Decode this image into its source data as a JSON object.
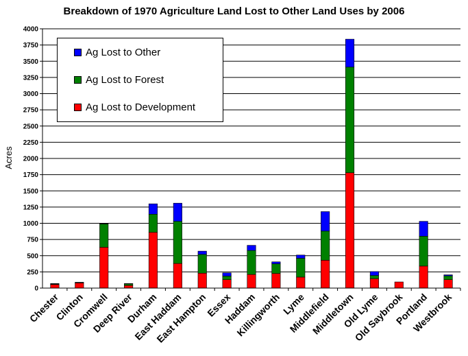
{
  "colors": {
    "Ag Lost to Development": "#ff0000",
    "Ag Lost to Forest": "#008000",
    "Ag Lost to Other": "#0000ff"
  },
  "chart_data": {
    "type": "bar",
    "stacked": true,
    "title": "Breakdown of 1970 Agriculture Land Lost to Other Land Uses by 2006",
    "xlabel": "",
    "ylabel": "Acres",
    "ylim": [
      0,
      4000
    ],
    "yticks": [
      "0",
      "250",
      "500",
      "750",
      "1000",
      "1250",
      "1500",
      "1750",
      "2000",
      "2250",
      "2500",
      "2750",
      "3000",
      "3250",
      "3500",
      "3750",
      "4000"
    ],
    "grid": true,
    "legend_position": "top-left",
    "categories": [
      "Chester",
      "Clinton",
      "Cromwell",
      "Deep River",
      "Durham",
      "East Haddam",
      "East Hampton",
      "Essex",
      "Haddam",
      "Killingworth",
      "Lyme",
      "Middlefield",
      "Middletown",
      "Old Lyme",
      "Old Saybrook",
      "Portland",
      "Westbrook"
    ],
    "series": [
      {
        "name": "Ag Lost to Development",
        "values": [
          55,
          80,
          630,
          40,
          860,
          380,
          230,
          130,
          210,
          225,
          170,
          430,
          1780,
          145,
          95,
          340,
          130
        ]
      },
      {
        "name": "Ag Lost to Forest",
        "values": [
          10,
          5,
          360,
          25,
          280,
          650,
          290,
          55,
          370,
          150,
          290,
          450,
          1630,
          50,
          0,
          460,
          60
        ]
      },
      {
        "name": "Ag Lost to Other",
        "values": [
          5,
          5,
          5,
          5,
          160,
          280,
          50,
          50,
          80,
          30,
          50,
          300,
          430,
          60,
          0,
          230,
          15
        ]
      }
    ],
    "legend_order": [
      "Ag Lost to Other",
      "Ag Lost to Forest",
      "Ag Lost to Development"
    ]
  }
}
